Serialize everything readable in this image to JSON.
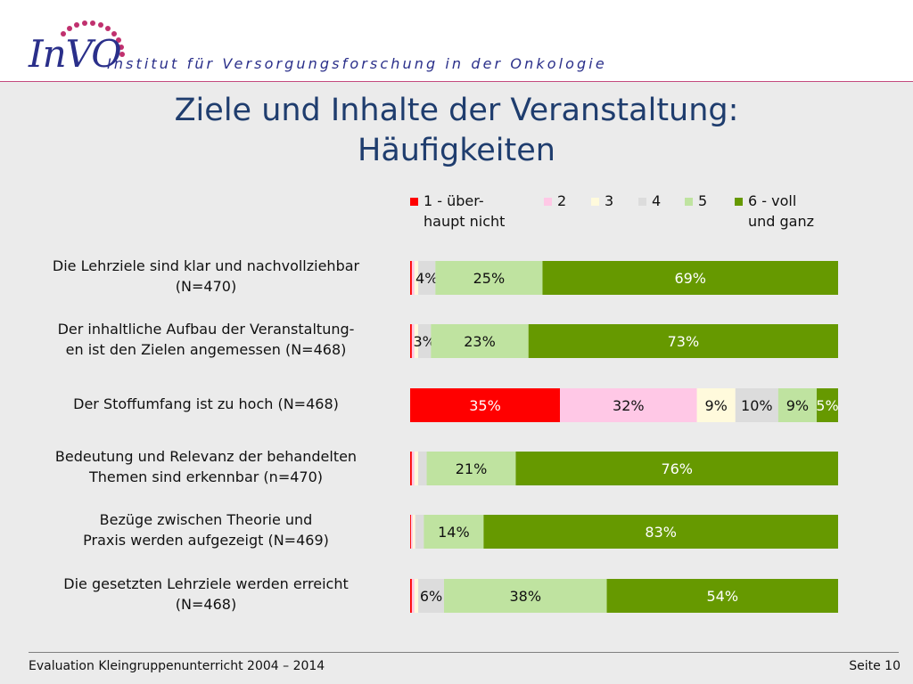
{
  "header": {
    "logo": "InVO",
    "institute": "Institut für Versorgungsforschung in der Onkologie"
  },
  "title": {
    "line1": "Ziele und Inhalte der Veranstaltung:",
    "line2": "Häufigkeiten"
  },
  "colors": {
    "cat1": "#ff0000",
    "cat2": "#ffc8e6",
    "cat3": "#fffadc",
    "cat4": "#dcdcdc",
    "cat5": "#bfe3a0",
    "cat6": "#669900",
    "title": "#1f3d6e",
    "logo": "#2a2f8a",
    "logo_dots": "#c0306e"
  },
  "legend": [
    {
      "line1": "1 - über-",
      "line2": "haupt nicht"
    },
    {
      "line1": "2",
      "line2": ""
    },
    {
      "line1": "3",
      "line2": ""
    },
    {
      "line1": "4",
      "line2": ""
    },
    {
      "line1": "5",
      "line2": ""
    },
    {
      "line1": "6 - voll",
      "line2": "und ganz"
    }
  ],
  "chart_data": {
    "type": "bar",
    "orientation": "horizontal",
    "stacked": "100%",
    "categories": [
      "Die Lehrziele sind klar und nachvollziehbar (N=470)",
      "Der inhaltliche Aufbau der Veranstaltung-en ist den Zielen angemessen (N=468)",
      "Der Stoffumfang ist zu hoch (N=468)",
      "Bedeutung und Relevanz der behandelten Themen sind erkennbar (n=470)",
      "Bezüge zwischen Theorie und Praxis werden aufgezeigt (N=469)",
      "Die gesetzten Lehrziele werden erreicht (N=468)"
    ],
    "label_lines": [
      [
        "Die Lehrziele sind klar und nachvollziehbar",
        "(N=470)"
      ],
      [
        "Der inhaltliche Aufbau der Veranstaltung-",
        "en ist den Zielen angemessen (N=468)"
      ],
      [
        "Der Stoffumfang ist zu hoch (N=468)"
      ],
      [
        "Bedeutung und Relevanz der behandelten",
        "Themen sind erkennbar (n=470)"
      ],
      [
        "Bezüge zwischen Theorie und",
        "Praxis werden aufgezeigt (N=469)"
      ],
      [
        "Die gesetzten Lehrziele werden erreicht",
        "(N=468)"
      ]
    ],
    "series": [
      {
        "name": "1 - über-haupt nicht",
        "values": [
          0.4,
          0.4,
          35,
          0.4,
          0.2,
          0.4
        ],
        "labels": [
          "",
          "",
          "35%",
          "",
          "",
          ""
        ]
      },
      {
        "name": "2",
        "values": [
          0.6,
          0.6,
          32,
          0.6,
          0.4,
          0.6
        ],
        "labels": [
          "",
          "",
          "32%",
          "",
          "",
          ""
        ]
      },
      {
        "name": "3",
        "values": [
          0.9,
          0.9,
          9,
          0.9,
          0.6,
          0.9
        ],
        "labels": [
          "",
          "",
          "9%",
          "",
          "",
          ""
        ]
      },
      {
        "name": "4",
        "values": [
          4,
          3,
          10,
          2,
          2,
          6
        ],
        "labels": [
          "4%",
          "3%",
          "10%",
          "",
          "",
          "6%"
        ]
      },
      {
        "name": "5",
        "values": [
          25,
          23,
          9,
          21,
          14,
          38
        ],
        "labels": [
          "25%",
          "23%",
          "9%",
          "21%",
          "14%",
          "38%"
        ]
      },
      {
        "name": "6 - voll und ganz",
        "values": [
          69,
          73,
          5,
          76,
          83,
          54
        ],
        "labels": [
          "69%",
          "73%",
          "5%",
          "76%",
          "83%",
          "54%"
        ]
      }
    ],
    "xlim": [
      0,
      100
    ],
    "legend_position": "top"
  },
  "footer": {
    "left": "Evaluation Kleingruppenunterricht 2004 – 2014",
    "right": "Seite 10"
  }
}
